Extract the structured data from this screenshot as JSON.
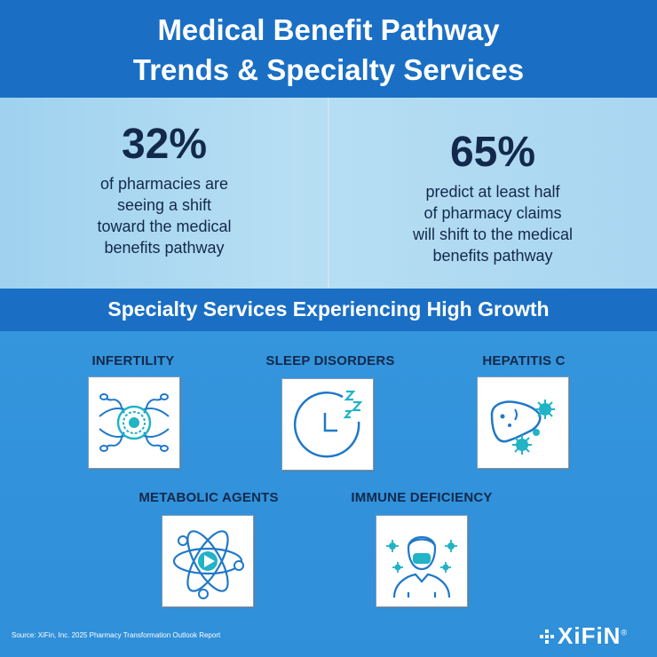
{
  "header": {
    "title_line1": "Medical Benefit Pathway",
    "title_line2": "Trends & Specialty Services"
  },
  "stats": [
    {
      "value": "32%",
      "lines": [
        "of pharmacies are",
        "seeing a shift",
        "toward the medical",
        "benefits pathway"
      ]
    },
    {
      "value": "65%",
      "lines": [
        "predict at least half",
        "of pharmacy claims",
        "will shift to the medical",
        "benefits pathway"
      ]
    }
  ],
  "section": {
    "title": "Specialty Services Experiencing High Growth"
  },
  "services": [
    {
      "label": "INFERTILITY",
      "icon": "sperm-egg-icon"
    },
    {
      "label": "SLEEP DISORDERS",
      "icon": "clock-zzz-icon"
    },
    {
      "label": "HEPATITIS C",
      "icon": "liver-virus-icon"
    },
    {
      "label": "METABOLIC AGENTS",
      "icon": "atom-icon"
    },
    {
      "label": "IMMUNE DEFICIENCY",
      "icon": "masked-person-icon"
    }
  ],
  "footer": {
    "source": "Source: XiFin, Inc. 2025 Pharmacy Transformation Outlook Report",
    "logo_text": "XiFiN",
    "registered": "®"
  },
  "colors": {
    "header_bg": "#1a6fc4",
    "navy_text": "#13294b",
    "icon_blue": "#1f78c8",
    "icon_teal": "#21b3c6"
  }
}
